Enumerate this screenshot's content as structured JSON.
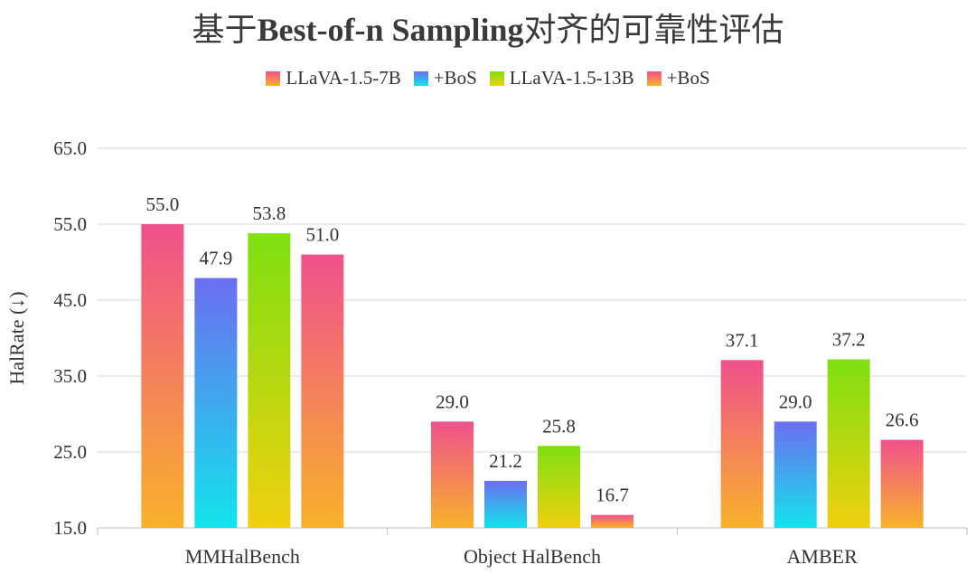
{
  "chart_data": {
    "type": "bar",
    "title_prefix": "基于",
    "title_bold": "Best-of-n Sampling",
    "title_suffix": "对齐的可靠性评估",
    "ylabel": "HalRate (↓)",
    "xlabel": "",
    "ylim": [
      15,
      65
    ],
    "yticks": [
      "15.0",
      "25.0",
      "35.0",
      "45.0",
      "55.0",
      "65.0"
    ],
    "categories": [
      "MMHalBench",
      "Object HalBench",
      "AMBER"
    ],
    "series": [
      {
        "name": "LLaVA-1.5-7B",
        "values": [
          55.0,
          29.0,
          37.1
        ],
        "labels": [
          "55.0",
          "29.0",
          "37.1"
        ],
        "color_top": "#f0508c",
        "color_bottom": "#f8b22a"
      },
      {
        "name": "+BoS",
        "values": [
          47.9,
          21.2,
          29.0
        ],
        "labels": [
          "47.9",
          "21.2",
          "29.0"
        ],
        "color_top": "#6b6ef0",
        "color_bottom": "#12e4ec"
      },
      {
        "name": "LLaVA-1.5-13B",
        "values": [
          53.8,
          25.8,
          37.2
        ],
        "labels": [
          "53.8",
          "25.8",
          "37.2"
        ],
        "color_top": "#7ee010",
        "color_bottom": "#f0d010"
      },
      {
        "name": "+BoS",
        "values": [
          51.0,
          16.7,
          26.6
        ],
        "labels": [
          "51.0",
          "16.7",
          "26.6"
        ],
        "color_top": "#f0508c",
        "color_bottom": "#f8b22a"
      }
    ]
  }
}
